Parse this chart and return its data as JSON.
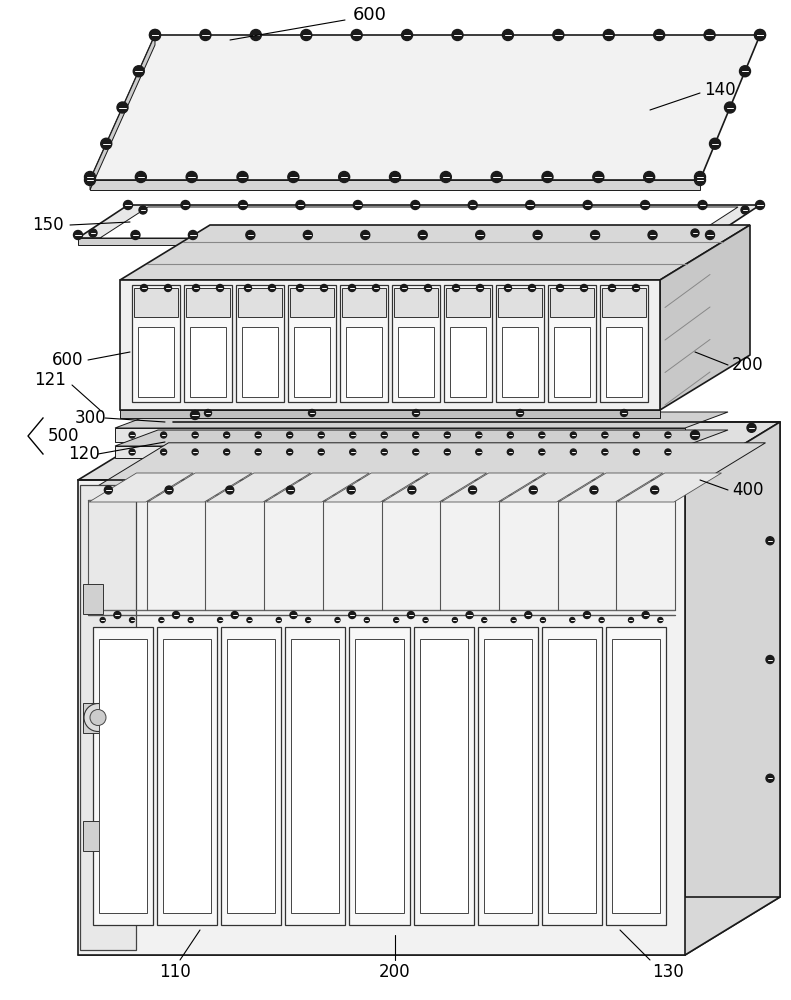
{
  "bg_color": "#ffffff",
  "lc": "#1a1a1a",
  "lc_light": "#555555",
  "fc_light": "#f5f5f5",
  "fc_mid": "#e0e0e0",
  "fc_dark": "#c8c8c8",
  "fc_very_light": "#fafafa",
  "screw_color": "#1a1a1a",
  "labels": {
    "600_top": "600",
    "140": "140",
    "150": "150",
    "600_mid": "600",
    "200_mid": "200",
    "300": "300",
    "500": "500",
    "120": "120",
    "400": "400",
    "121": "121",
    "110": "110",
    "200_bot": "200",
    "130": "130"
  }
}
